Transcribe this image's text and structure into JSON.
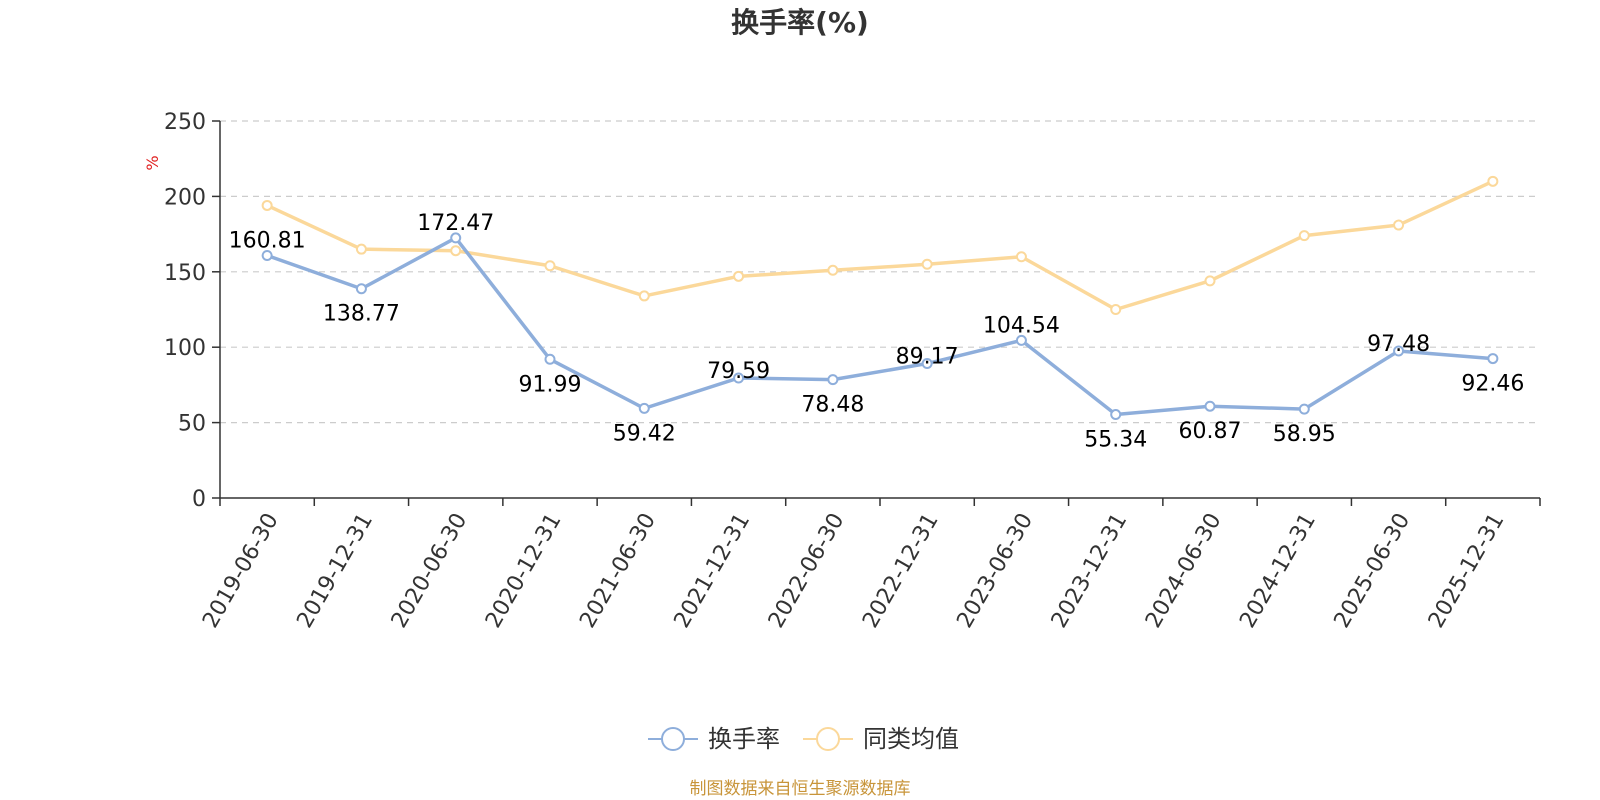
{
  "chart_data": {
    "type": "line",
    "title": "换手率(%)",
    "ylabel": "%",
    "ylim": [
      0,
      250
    ],
    "yticks": [
      0,
      50,
      100,
      150,
      200,
      250
    ],
    "grid": true,
    "categories": [
      "2019-06-30",
      "2019-12-31",
      "2020-06-30",
      "2020-12-31",
      "2021-06-30",
      "2021-12-31",
      "2022-06-30",
      "2022-12-31",
      "2023-06-30",
      "2023-12-31",
      "2024-06-30",
      "2024-12-31",
      "2025-06-30",
      "2025-12-31"
    ],
    "series": [
      {
        "name": "换手率",
        "color": "#8eaedb",
        "values": [
          160.81,
          138.77,
          172.47,
          91.99,
          59.42,
          79.59,
          78.48,
          89.17,
          104.54,
          55.34,
          60.87,
          58.95,
          97.48,
          92.46
        ],
        "labels": [
          "160.81",
          "138.77",
          "172.47",
          "91.99",
          "59.42",
          "79.59",
          "78.48",
          "89.17",
          "104.54",
          "55.34",
          "60.87",
          "58.95",
          "97.48",
          "92.46"
        ]
      },
      {
        "name": "同类均值",
        "color": "#fbd89a",
        "values": [
          194,
          165,
          164,
          154,
          134,
          147,
          151,
          155,
          160,
          125,
          144,
          174,
          181,
          210
        ]
      }
    ],
    "legend_position": "bottom-center",
    "source": "制图数据来自恒生聚源数据库",
    "source_color": "#c8953a",
    "unit_color": "#e02020"
  }
}
